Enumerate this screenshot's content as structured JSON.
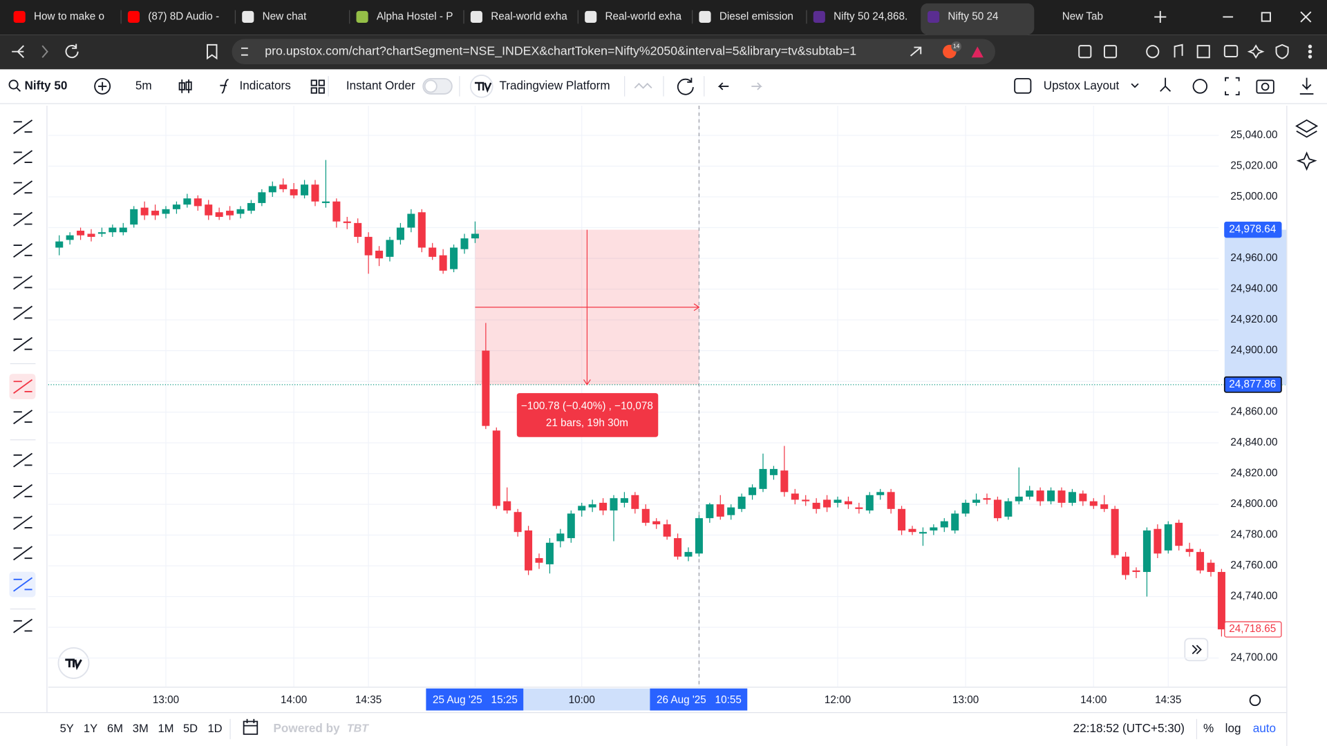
{
  "browser": {
    "tabs": [
      "How to make o",
      "(87) 8D Audio -",
      "New chat",
      "Alpha Hostel - P",
      "Real-world exha",
      "Real-world exha",
      "Diesel emission",
      "Nifty 50 24,868.",
      "Nifty 50 24",
      "New Tab"
    ],
    "active_tab": 8,
    "url": "pro.upstox.com/chart?chartSegment=NSE_INDEX&chartToken=Nifty%2050&interval=5&library=tv&subtab=1",
    "badge": "14"
  },
  "app_toolbar": {
    "symbol": "Nifty 50",
    "interval": "5m",
    "indicators": "Indicators",
    "instant_order": "Instant Order",
    "platform": "Tradingview Platform",
    "layout": "Upstox Layout"
  },
  "chart_data": {
    "type": "candlestick",
    "categories": [
      null,
      null,
      null,
      null,
      null,
      null,
      null,
      null,
      null,
      null,
      "13:00",
      null,
      null,
      null,
      null,
      null,
      null,
      null,
      null,
      null,
      null,
      null,
      "14:00",
      null,
      null,
      null,
      null,
      null,
      null,
      "14:35",
      null,
      null,
      null,
      null,
      null,
      null,
      null,
      null,
      null,
      "25 Aug '25   15:25",
      null,
      null,
      null,
      null,
      null,
      null,
      null,
      null,
      null,
      "10:00",
      null,
      null,
      null,
      null,
      null,
      null,
      null,
      null,
      null,
      null,
      "26 Aug '25   10:55",
      null,
      null,
      null,
      null,
      null,
      null,
      null,
      null,
      null,
      null,
      null,
      null,
      "12:00",
      null,
      null,
      null,
      null,
      null,
      null,
      null,
      null,
      null,
      null,
      null,
      "13:00",
      null,
      null,
      null,
      null,
      null,
      null,
      null,
      null,
      null,
      null,
      null,
      "14:00",
      null,
      null,
      null,
      null,
      null,
      null,
      "14:35",
      null,
      null,
      null,
      null,
      null
    ],
    "open": [
      24967,
      24972,
      24978,
      24976,
      24976,
      24977,
      24977,
      24982,
      24993,
      24991,
      24989,
      24992,
      24995,
      24999,
      24995,
      24990,
      24991,
      24989,
      24991,
      24996,
      25003,
      25008,
      25005,
      25001,
      25008,
      24996,
      24997,
      24984,
      24983,
      24974,
      24965,
      24961,
      24972,
      24980,
      24990,
      24967,
      24962,
      24953,
      24966,
      24973,
      24900,
      24848,
      24802,
      24795,
      24783,
      24765,
      24761,
      24776,
      24778,
      24796,
      24798,
      24801,
      24796,
      24801,
      24806,
      24797,
      24789,
      24787,
      24778,
      24766,
      24768,
      24791,
      24800,
      24793,
      24797,
      24806,
      24810,
      24819,
      24822,
      24807,
      24803,
      24801,
      24803,
      24801,
      24802,
      24798,
      24796,
      24806,
      24808,
      24797,
      24784,
      24781,
      24783,
      24785,
      24783,
      24794,
      24801,
      24804,
      24803,
      24792,
      24802,
      24805,
      24809,
      24802,
      24809,
      24801,
      24807,
      24802,
      24800,
      24797,
      24766,
      24757,
      24756,
      24784,
      24770,
      24788,
      24771,
      24769,
      24762,
      24756
    ],
    "high": [
      24975,
      24977,
      24980,
      24979,
      24980,
      24982,
      24983,
      24994,
      24997,
      24995,
      24994,
      24997,
      25002,
      25001,
      24998,
      24993,
      24994,
      24994,
      24998,
      25005,
      25010,
      25012,
      25009,
      25011,
      25011,
      25024,
      24999,
      24987,
      24986,
      24977,
      24968,
      24974,
      24983,
      24992,
      24992,
      24970,
      24966,
      24969,
      24976,
      24984,
      24918,
      24850,
      24811,
      24797,
      24786,
      24768,
      24778,
      24784,
      24796,
      24801,
      24803,
      24804,
      24806,
      24808,
      24808,
      24800,
      24791,
      24790,
      24781,
      24772,
      24793,
      24801,
      24806,
      24800,
      24807,
      24813,
      24833,
      24825,
      24838,
      24810,
      24806,
      24804,
      24806,
      24805,
      24805,
      24801,
      24808,
      24810,
      24810,
      24799,
      24786,
      24785,
      24787,
      24791,
      24796,
      24803,
      24807,
      24807,
      24805,
      24804,
      24824,
      24812,
      24811,
      24811,
      24811,
      24810,
      24809,
      24804,
      24806,
      24799,
      24769,
      24759,
      24785,
      24787,
      24789,
      24790,
      24775,
      24771,
      24764,
      24758
    ],
    "low": [
      24962,
      24969,
      24972,
      24971,
      24974,
      24974,
      24975,
      24980,
      24985,
      24985,
      24986,
      24989,
      24993,
      24991,
      24985,
      24985,
      24985,
      24986,
      24989,
      24994,
      25000,
      25003,
      24999,
      24999,
      24994,
      24993,
      24980,
      24979,
      24970,
      24950,
      24955,
      24958,
      24969,
      24977,
      24964,
      24959,
      24950,
      24951,
      24963,
      24970,
      24849,
      24797,
      24794,
      24779,
      24754,
      24758,
      24755,
      24772,
      24775,
      24792,
      24795,
      24793,
      24776,
      24798,
      24794,
      24786,
      24784,
      24777,
      24764,
      24763,
      24766,
      24788,
      24790,
      24790,
      24795,
      24803,
      24808,
      24816,
      24805,
      24800,
      24799,
      24794,
      24795,
      24798,
      24797,
      24794,
      24794,
      24803,
      24794,
      24780,
      24780,
      24773,
      24780,
      24782,
      24781,
      24792,
      24799,
      24800,
      24789,
      24790,
      24800,
      24803,
      24799,
      24800,
      24798,
      24799,
      24799,
      24797,
      24795,
      24765,
      24751,
      24752,
      24740,
      24765,
      24768,
      24770,
      24766,
      24755,
      24753,
      24714
    ],
    "close": [
      24971,
      24975,
      24975,
      24974,
      24977,
      24980,
      24980,
      24992,
      24988,
      24988,
      24992,
      24995,
      24999,
      24994,
      24988,
      24987,
      24988,
      24992,
      24996,
      25003,
      25007,
      25005,
      25001,
      25008,
      24997,
      24997,
      24984,
      24983,
      24974,
      24962,
      24960,
      24972,
      24980,
      24989,
      24967,
      24961,
      24952,
      24967,
      24973,
      24976,
      24851,
      24799,
      24796,
      24782,
      24757,
      24762,
      24775,
      24781,
      24794,
      24799,
      24800,
      24796,
      24804,
      24804,
      24797,
      24788,
      24787,
      24779,
      24766,
      24769,
      24791,
      24800,
      24792,
      24798,
      24805,
      24811,
      24823,
      24823,
      24808,
      24803,
      24802,
      24797,
      24798,
      24803,
      24800,
      24797,
      24806,
      24808,
      24797,
      24783,
      24782,
      24782,
      24785,
      24789,
      24794,
      24801,
      24803,
      24803,
      24791,
      24802,
      24805,
      24809,
      24802,
      24809,
      24801,
      24808,
      24802,
      24799,
      24797,
      24767,
      24754,
      24756,
      24783,
      24768,
      24787,
      24773,
      24769,
      24757,
      24756,
      24718.65
    ],
    "up_color": "#089981",
    "down_color": "#f23645",
    "ylim": [
      24681.3,
      25059.3
    ],
    "yticks": [
      {
        "value": 24700,
        "label": "24,700.00"
      },
      {
        "value": 24720,
        "label": "24,720.00"
      },
      {
        "value": 24740,
        "label": "24,740.00"
      },
      {
        "value": 24760,
        "label": "24,760.00"
      },
      {
        "value": 24780,
        "label": "24,780.00"
      },
      {
        "value": 24800,
        "label": "24,800.00"
      },
      {
        "value": 24820,
        "label": "24,820.00"
      },
      {
        "value": 24840,
        "label": "24,840.00"
      },
      {
        "value": 24860,
        "label": "24,860.00"
      },
      {
        "value": 24880,
        "label": "24,880.00"
      },
      {
        "value": 24900,
        "label": "24,900.00"
      },
      {
        "value": 24920,
        "label": "24,920.00"
      },
      {
        "value": 24940,
        "label": "24,940.00"
      },
      {
        "value": 24960,
        "label": "24,960.00"
      },
      {
        "value": 24980,
        "label": "24,980.00"
      },
      {
        "value": 25000,
        "label": "25,000.00"
      },
      {
        "value": 25020,
        "label": "25,020.00"
      },
      {
        "value": 25040,
        "label": "25,040.00"
      }
    ],
    "grid": true,
    "price_labels": [
      {
        "value": 24978.64,
        "label": "24,978.64",
        "color": "#2962ff",
        "outline": false
      },
      {
        "value": 24877.86,
        "label": "24,877.86",
        "color": "#2962ff",
        "outline": false
      },
      {
        "value": 24718.65,
        "label": "24,718.65",
        "color": "#f23645",
        "outline": true
      }
    ],
    "measure": {
      "from_category": 39,
      "to_category": 60,
      "from_price": 24978.64,
      "to_price": 24877.86,
      "color": "#f23645",
      "text": [
        "−100.78 (−0.40%) , −10,078",
        "21 bars, 19h 30m"
      ]
    }
  },
  "bottom_bar": {
    "ranges": [
      "5Y",
      "1Y",
      "6M",
      "3M",
      "1M",
      "5D",
      "1D"
    ],
    "powered_by": "Powered by",
    "brand": "TBT",
    "time": "22:18:52 (UTC+5:30)",
    "percent": "%",
    "log": "log",
    "auto": "auto"
  }
}
